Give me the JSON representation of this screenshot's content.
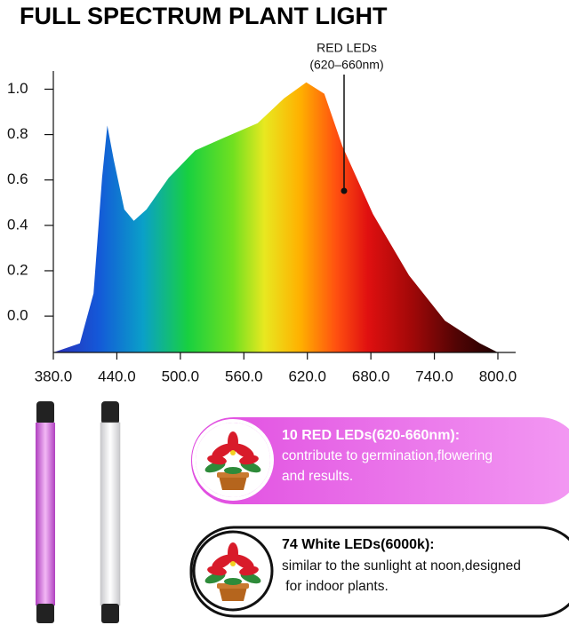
{
  "chart_data": {
    "type": "area",
    "title": "FULL SPECTRUM PLANT LIGHT",
    "annotation": [
      "RED LEDs",
      "(620–660nm)"
    ],
    "x": [
      380,
      405,
      418,
      426,
      431,
      437,
      447,
      456,
      468,
      489,
      514,
      548,
      573,
      598,
      619,
      636,
      653,
      682,
      716,
      750,
      783,
      800
    ],
    "values": [
      -0.16,
      -0.12,
      0.1,
      0.61,
      0.84,
      0.69,
      0.47,
      0.42,
      0.47,
      0.61,
      0.73,
      0.8,
      0.85,
      0.96,
      1.03,
      0.98,
      0.75,
      0.45,
      0.18,
      -0.02,
      -0.12,
      -0.16
    ],
    "xlim": [
      380,
      800
    ],
    "ylim": [
      -0.16,
      1.08
    ],
    "xticks": [
      {
        "value": 380,
        "label": "380.0"
      },
      {
        "value": 440,
        "label": "440.0"
      },
      {
        "value": 500,
        "label": "500.0"
      },
      {
        "value": 560,
        "label": "560.0"
      },
      {
        "value": 620,
        "label": "620.0"
      },
      {
        "value": 680,
        "label": "680.0"
      },
      {
        "value": 740,
        "label": "740.0"
      },
      {
        "value": 800,
        "label": "800.0"
      }
    ],
    "yticks": [
      {
        "value": 0,
        "label": "0.0"
      },
      0.2,
      0.4,
      0.6,
      0.8,
      {
        "value": 1,
        "label": "1.0"
      }
    ]
  },
  "cards": [
    {
      "title": "10 RED LEDs(620-660nm):",
      "lines": [
        "contribute to germination,flowering",
        "and results."
      ]
    },
    {
      "title": "74 White LEDs(6000k):",
      "lines": [
        "similar to the sunlight at noon,designed",
        " for indoor plants."
      ]
    }
  ]
}
